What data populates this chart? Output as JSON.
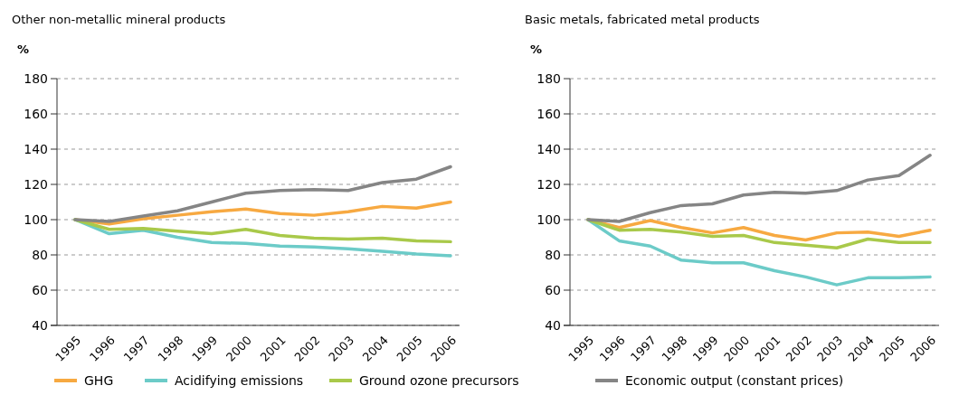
{
  "chart_data": [
    {
      "type": "line",
      "title": "Other non-metallic mineral products",
      "ylabel": "%",
      "categories": [
        "1995",
        "1996",
        "1997",
        "1998",
        "1999",
        "2000",
        "2001",
        "2002",
        "2003",
        "2004",
        "2005",
        "2006"
      ],
      "ylim": [
        40,
        180
      ],
      "yticks": [
        40,
        60,
        80,
        100,
        120,
        140,
        160,
        180
      ],
      "grid": "y",
      "legend": "bottom",
      "series": [
        {
          "name": "GHG",
          "color": "#f7a941",
          "values": [
            100,
            97.5,
            100.5,
            102.5,
            104.5,
            106,
            103.5,
            102.5,
            104.5,
            107.5,
            106.5,
            110
          ]
        },
        {
          "name": "Acidifying emissions",
          "color": "#6ccbc8",
          "values": [
            100,
            92,
            94,
            90,
            87,
            86.5,
            85,
            84.5,
            83.5,
            82,
            80.5,
            79.5
          ]
        },
        {
          "name": "Ground ozone precursors",
          "color": "#a9c94a",
          "values": [
            100,
            94.5,
            95,
            93.5,
            92,
            94.5,
            91,
            89.5,
            89,
            89.5,
            88,
            87.5
          ]
        },
        {
          "name": "Economic output (constant prices)",
          "color": "#858585",
          "values": [
            100,
            99,
            102,
            105,
            110,
            115,
            116.5,
            117,
            116.5,
            121,
            123,
            130
          ]
        }
      ]
    },
    {
      "type": "line",
      "title": "Basic metals, fabricated metal products",
      "ylabel": "%",
      "categories": [
        "1995",
        "1996",
        "1997",
        "1998",
        "1999",
        "2000",
        "2001",
        "2002",
        "2003",
        "2004",
        "2005",
        "2006"
      ],
      "ylim": [
        40,
        180
      ],
      "yticks": [
        40,
        60,
        80,
        100,
        120,
        140,
        160,
        180
      ],
      "grid": "y",
      "series": [
        {
          "color": "#f7a941",
          "values": [
            100,
            95.5,
            99.5,
            95.5,
            92.5,
            95.5,
            91,
            88.5,
            92.5,
            93,
            90.5,
            94
          ]
        },
        {
          "color": "#6ccbc8",
          "values": [
            100,
            88,
            85,
            77,
            75.5,
            75.5,
            71,
            67.5,
            63,
            67,
            67,
            67.5
          ]
        },
        {
          "color": "#a9c94a",
          "values": [
            100,
            94,
            94.5,
            93,
            90.5,
            91,
            87,
            85.5,
            84,
            89,
            87,
            87
          ]
        },
        {
          "color": "#858585",
          "values": [
            100,
            99,
            104,
            108,
            109,
            114,
            115.5,
            115,
            116.5,
            122.5,
            125,
            136.5
          ]
        }
      ]
    }
  ]
}
